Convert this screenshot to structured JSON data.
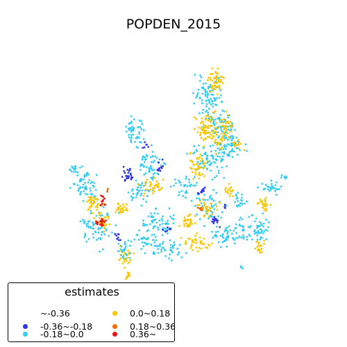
{
  "title": "POPDEN_2015",
  "legend": {
    "title": "estimates",
    "items": [
      {
        "label": "~-0.36",
        "color": "#ffffff"
      },
      {
        "label": "-0.36~-0.18",
        "color": "#3333ee"
      },
      {
        "label": "-0.18~0.0",
        "color": "#33ccf2"
      },
      {
        "label": "0.0~0.18",
        "color": "#f8c500"
      },
      {
        "label": "0.18~0.36",
        "color": "#f56a05"
      },
      {
        "label": "0.36~",
        "color": "#ee1111"
      }
    ]
  }
}
